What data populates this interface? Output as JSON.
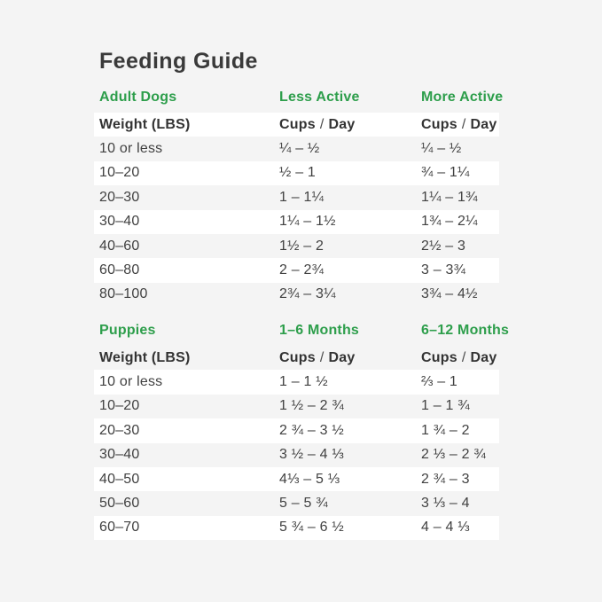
{
  "title": "Feeding Guide",
  "colors": {
    "background": "#F4F4F4",
    "stripe": "#FFFFFF",
    "accent_green": "#2D9E4B",
    "title_text": "#3A3A3A",
    "body_text": "#414141"
  },
  "sections": [
    {
      "id": "adult-dogs",
      "columns": [
        "Adult Dogs",
        "Less Active",
        "More Active"
      ],
      "subheader": {
        "weight": "Weight (LBS)",
        "cups": "Cups",
        "slash": "/",
        "day": "Day"
      },
      "rows": [
        [
          "10 or less",
          "¼ – ½",
          "¼ – ½"
        ],
        [
          "10–20",
          "½ – 1",
          "¾ – 1¼"
        ],
        [
          "20–30",
          "1 – 1¼",
          "1¼ – 1¾"
        ],
        [
          "30–40",
          "1¼ – 1½",
          "1¾ – 2¼"
        ],
        [
          "40–60",
          "1½ – 2",
          "2½ – 3"
        ],
        [
          "60–80",
          "2 – 2¾",
          "3 – 3¾"
        ],
        [
          "80–100",
          "2¾ – 3¼",
          "3¾ – 4½"
        ]
      ]
    },
    {
      "id": "puppies",
      "columns": [
        "Puppies",
        "1–6 Months",
        "6–12 Months"
      ],
      "subheader": {
        "weight": "Weight (LBS)",
        "cups": "Cups",
        "slash": "/",
        "day": "Day"
      },
      "rows": [
        [
          "10 or less",
          "1 – 1 ½",
          "⅔ – 1"
        ],
        [
          "10–20",
          "1 ½ – 2 ¾",
          "1 – 1 ¾"
        ],
        [
          "20–30",
          "2 ¾ – 3 ½",
          "1 ¾ – 2"
        ],
        [
          "30–40",
          "3 ½ – 4 ⅓",
          "2 ⅓ – 2 ¾"
        ],
        [
          "40–50",
          "4⅓ – 5 ⅓",
          "2 ¾ – 3"
        ],
        [
          "50–60",
          "5 – 5 ¾",
          "3 ⅓ – 4"
        ],
        [
          "60–70",
          "5 ¾ – 6 ½",
          "4 – 4 ⅓"
        ]
      ]
    }
  ]
}
